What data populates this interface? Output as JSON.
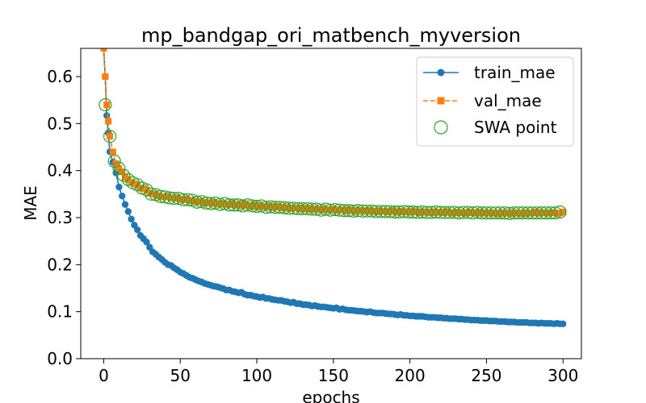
{
  "chart_data": {
    "type": "line",
    "title": "mp_bandgap_ori_matbench_myversion",
    "xlabel": "epochs",
    "ylabel": "MAE",
    "xlim": [
      -15,
      312
    ],
    "ylim": [
      0.0,
      0.66
    ],
    "xticks": [
      0,
      50,
      100,
      150,
      200,
      250,
      300
    ],
    "yticks": [
      0.0,
      0.1,
      0.2,
      0.3,
      0.4,
      0.5,
      0.6
    ],
    "xtick_labels": [
      "0",
      "50",
      "100",
      "150",
      "200",
      "250",
      "300"
    ],
    "ytick_labels": [
      "0.0",
      "0.1",
      "0.2",
      "0.3",
      "0.4",
      "0.5",
      "0.6"
    ],
    "grid": false,
    "legend": "top-right",
    "legend_labels": [
      "train_mae",
      "val_mae",
      "SWA point"
    ],
    "colors": {
      "train": "#1f77b4",
      "val": "#ff7f0e",
      "swa": "#2ca02c"
    },
    "series": [
      {
        "name": "train_mae",
        "marker": "circle",
        "linestyle": "solid",
        "x": [
          0,
          1,
          2,
          3,
          4,
          6,
          8,
          10,
          12,
          14,
          16,
          18,
          20,
          22,
          24,
          26,
          28,
          30,
          32,
          34,
          36,
          38,
          40,
          42,
          44,
          46,
          48,
          50,
          52,
          54,
          56,
          58,
          60,
          62,
          64,
          66,
          68,
          70,
          72,
          74,
          76,
          78,
          80,
          82,
          84,
          86,
          88,
          90,
          92,
          94,
          96,
          98,
          100,
          102,
          104,
          106,
          108,
          110,
          112,
          114,
          116,
          118,
          120,
          122,
          124,
          126,
          128,
          130,
          132,
          134,
          136,
          138,
          140,
          142,
          144,
          146,
          148,
          150,
          152,
          154,
          156,
          158,
          160,
          162,
          164,
          166,
          168,
          170,
          172,
          174,
          176,
          178,
          180,
          182,
          184,
          186,
          188,
          190,
          192,
          194,
          196,
          198,
          200,
          202,
          204,
          206,
          208,
          210,
          212,
          214,
          216,
          218,
          220,
          222,
          224,
          226,
          228,
          230,
          232,
          234,
          236,
          238,
          240,
          242,
          244,
          246,
          248,
          250,
          252,
          254,
          256,
          258,
          260,
          262,
          264,
          266,
          268,
          270,
          272,
          274,
          276,
          278,
          280,
          282,
          284,
          286,
          288,
          290,
          292,
          294,
          296,
          298,
          300
        ],
        "values": [
          0.66,
          0.6,
          0.517,
          0.48,
          0.44,
          0.418,
          0.395,
          0.365,
          0.346,
          0.328,
          0.313,
          0.297,
          0.284,
          0.274,
          0.262,
          0.255,
          0.248,
          0.237,
          0.227,
          0.222,
          0.216,
          0.211,
          0.205,
          0.2,
          0.198,
          0.193,
          0.189,
          0.184,
          0.181,
          0.177,
          0.173,
          0.171,
          0.168,
          0.165,
          0.163,
          0.16,
          0.158,
          0.156,
          0.154,
          0.153,
          0.151,
          0.149,
          0.146,
          0.146,
          0.143,
          0.142,
          0.14,
          0.141,
          0.137,
          0.135,
          0.135,
          0.133,
          0.132,
          0.13,
          0.131,
          0.128,
          0.128,
          0.126,
          0.125,
          0.124,
          0.124,
          0.122,
          0.121,
          0.119,
          0.12,
          0.117,
          0.117,
          0.115,
          0.115,
          0.114,
          0.112,
          0.113,
          0.111,
          0.11,
          0.11,
          0.109,
          0.108,
          0.107,
          0.108,
          0.105,
          0.106,
          0.104,
          0.103,
          0.103,
          0.102,
          0.101,
          0.101,
          0.1,
          0.099,
          0.1,
          0.098,
          0.097,
          0.097,
          0.097,
          0.096,
          0.095,
          0.095,
          0.094,
          0.093,
          0.094,
          0.092,
          0.092,
          0.091,
          0.091,
          0.09,
          0.09,
          0.09,
          0.089,
          0.088,
          0.088,
          0.088,
          0.087,
          0.087,
          0.086,
          0.086,
          0.085,
          0.085,
          0.085,
          0.084,
          0.084,
          0.083,
          0.083,
          0.082,
          0.082,
          0.082,
          0.081,
          0.081,
          0.081,
          0.08,
          0.08,
          0.08,
          0.079,
          0.079,
          0.079,
          0.078,
          0.078,
          0.078,
          0.077,
          0.077,
          0.077,
          0.077,
          0.076,
          0.076,
          0.076,
          0.075,
          0.076,
          0.075,
          0.075,
          0.075,
          0.074,
          0.075,
          0.074,
          0.074
        ]
      },
      {
        "name": "val_mae",
        "marker": "square",
        "linestyle": "dashed",
        "x": [
          0,
          1,
          2,
          3,
          4,
          6,
          8,
          10,
          12,
          14,
          16,
          18,
          20,
          22,
          24,
          26,
          28,
          30,
          32,
          34,
          36,
          38,
          40,
          42,
          44,
          46,
          48,
          50,
          52,
          54,
          56,
          58,
          60,
          62,
          64,
          66,
          68,
          70,
          72,
          74,
          76,
          78,
          80,
          82,
          84,
          86,
          88,
          90,
          92,
          94,
          96,
          98,
          100,
          102,
          104,
          106,
          108,
          110,
          112,
          114,
          116,
          118,
          120,
          122,
          124,
          126,
          128,
          130,
          132,
          134,
          136,
          138,
          140,
          142,
          144,
          146,
          148,
          150,
          152,
          154,
          156,
          158,
          160,
          162,
          164,
          166,
          168,
          170,
          172,
          174,
          176,
          178,
          180,
          182,
          184,
          186,
          188,
          190,
          192,
          194,
          196,
          198,
          200,
          202,
          204,
          206,
          208,
          210,
          212,
          214,
          216,
          218,
          220,
          222,
          224,
          226,
          228,
          230,
          232,
          234,
          236,
          238,
          240,
          242,
          244,
          246,
          248,
          250,
          252,
          254,
          256,
          258,
          260,
          262,
          264,
          266,
          268,
          270,
          272,
          274,
          276,
          278,
          280,
          282,
          284,
          286,
          288,
          290,
          292,
          294,
          296,
          298,
          300
        ],
        "values": [
          0.66,
          0.6,
          0.54,
          0.505,
          0.473,
          0.44,
          0.415,
          0.405,
          0.397,
          0.386,
          0.381,
          0.375,
          0.372,
          0.37,
          0.363,
          0.362,
          0.359,
          0.352,
          0.351,
          0.349,
          0.346,
          0.344,
          0.344,
          0.345,
          0.342,
          0.341,
          0.343,
          0.339,
          0.338,
          0.34,
          0.336,
          0.337,
          0.334,
          0.333,
          0.335,
          0.331,
          0.332,
          0.33,
          0.333,
          0.33,
          0.328,
          0.331,
          0.329,
          0.327,
          0.33,
          0.326,
          0.328,
          0.325,
          0.329,
          0.326,
          0.324,
          0.327,
          0.323,
          0.326,
          0.324,
          0.322,
          0.325,
          0.321,
          0.324,
          0.322,
          0.323,
          0.32,
          0.322,
          0.319,
          0.321,
          0.32,
          0.318,
          0.321,
          0.318,
          0.32,
          0.317,
          0.319,
          0.318,
          0.316,
          0.319,
          0.317,
          0.316,
          0.318,
          0.315,
          0.317,
          0.316,
          0.314,
          0.317,
          0.315,
          0.313,
          0.316,
          0.314,
          0.315,
          0.313,
          0.316,
          0.314,
          0.312,
          0.315,
          0.313,
          0.314,
          0.312,
          0.315,
          0.313,
          0.311,
          0.314,
          0.312,
          0.313,
          0.311,
          0.314,
          0.312,
          0.31,
          0.313,
          0.311,
          0.312,
          0.31,
          0.313,
          0.311,
          0.312,
          0.31,
          0.313,
          0.311,
          0.309,
          0.312,
          0.31,
          0.311,
          0.309,
          0.312,
          0.31,
          0.311,
          0.309,
          0.312,
          0.31,
          0.309,
          0.311,
          0.309,
          0.31,
          0.308,
          0.311,
          0.309,
          0.31,
          0.308,
          0.311,
          0.309,
          0.31,
          0.308,
          0.311,
          0.309,
          0.31,
          0.312,
          0.309,
          0.311,
          0.31,
          0.309,
          0.311,
          0.31,
          0.309,
          0.31,
          0.312
        ]
      },
      {
        "name": "SWA point",
        "marker": "open-circle",
        "linestyle": "none",
        "x": [
          1,
          4,
          7,
          10,
          13,
          16,
          19,
          22,
          25,
          28,
          31,
          34,
          37,
          40,
          43,
          46,
          49,
          52,
          55,
          58,
          61,
          64,
          67,
          70,
          73,
          76,
          79,
          82,
          85,
          88,
          91,
          94,
          97,
          100,
          103,
          106,
          109,
          112,
          115,
          118,
          121,
          124,
          127,
          130,
          133,
          136,
          139,
          142,
          145,
          148,
          151,
          154,
          157,
          160,
          163,
          166,
          169,
          172,
          175,
          178,
          181,
          184,
          187,
          190,
          193,
          196,
          199,
          202,
          205,
          208,
          211,
          214,
          217,
          220,
          223,
          226,
          229,
          232,
          235,
          238,
          241,
          244,
          247,
          250,
          253,
          256,
          259,
          262,
          265,
          268,
          271,
          274,
          277,
          280,
          283,
          286,
          289,
          292,
          295,
          298
        ],
        "values": [
          0.54,
          0.473,
          0.42,
          0.405,
          0.39,
          0.381,
          0.374,
          0.37,
          0.363,
          0.359,
          0.35,
          0.349,
          0.345,
          0.344,
          0.342,
          0.341,
          0.341,
          0.338,
          0.338,
          0.337,
          0.333,
          0.334,
          0.331,
          0.33,
          0.331,
          0.328,
          0.33,
          0.327,
          0.327,
          0.327,
          0.325,
          0.327,
          0.325,
          0.324,
          0.325,
          0.322,
          0.323,
          0.322,
          0.322,
          0.321,
          0.32,
          0.32,
          0.319,
          0.319,
          0.319,
          0.318,
          0.318,
          0.316,
          0.318,
          0.316,
          0.317,
          0.316,
          0.315,
          0.315,
          0.314,
          0.315,
          0.314,
          0.314,
          0.314,
          0.313,
          0.313,
          0.313,
          0.313,
          0.312,
          0.312,
          0.313,
          0.312,
          0.312,
          0.311,
          0.312,
          0.311,
          0.311,
          0.312,
          0.311,
          0.311,
          0.311,
          0.311,
          0.31,
          0.311,
          0.311,
          0.31,
          0.311,
          0.31,
          0.31,
          0.31,
          0.31,
          0.31,
          0.31,
          0.309,
          0.31,
          0.31,
          0.31,
          0.31,
          0.31,
          0.31,
          0.31,
          0.31,
          0.31,
          0.31,
          0.312
        ]
      }
    ]
  }
}
